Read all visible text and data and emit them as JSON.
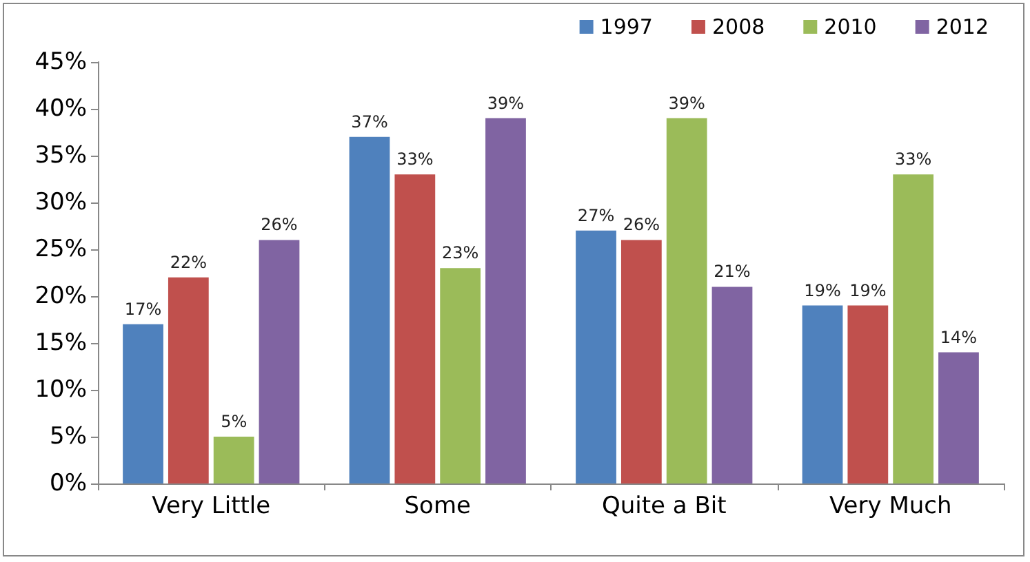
{
  "chart_data": {
    "type": "bar",
    "categories": [
      "Very Little",
      "Some",
      "Quite a Bit",
      "Very Much"
    ],
    "series": [
      {
        "name": "1997",
        "color": "#4f81bd",
        "values": [
          17,
          37,
          27,
          19
        ],
        "value_labels": [
          "17%",
          "37%",
          "27%",
          "19%"
        ]
      },
      {
        "name": "2008",
        "color": "#c0504d",
        "values": [
          22,
          33,
          26,
          19
        ],
        "value_labels": [
          "22%",
          "33%",
          "26%",
          "19%"
        ]
      },
      {
        "name": "2010",
        "color": "#9bbb59",
        "values": [
          5,
          23,
          39,
          33
        ],
        "value_labels": [
          "5%",
          "23%",
          "39%",
          "33%"
        ]
      },
      {
        "name": "2012",
        "color": "#8064a2",
        "values": [
          26,
          39,
          21,
          14
        ],
        "value_labels": [
          "26%",
          "39%",
          "21%",
          "14%"
        ]
      }
    ],
    "ylim": [
      0,
      45
    ],
    "yticks": [
      {
        "value": 0,
        "label": "0%"
      },
      {
        "value": 5,
        "label": "5%"
      },
      {
        "value": 10,
        "label": "10%"
      },
      {
        "value": 15,
        "label": "15%"
      },
      {
        "value": 20,
        "label": "20%"
      },
      {
        "value": 25,
        "label": "25%"
      },
      {
        "value": 30,
        "label": "30%"
      },
      {
        "value": 35,
        "label": "35%"
      },
      {
        "value": 40,
        "label": "40%"
      },
      {
        "value": 45,
        "label": "45%"
      }
    ],
    "grid": false,
    "legend": "top right"
  }
}
